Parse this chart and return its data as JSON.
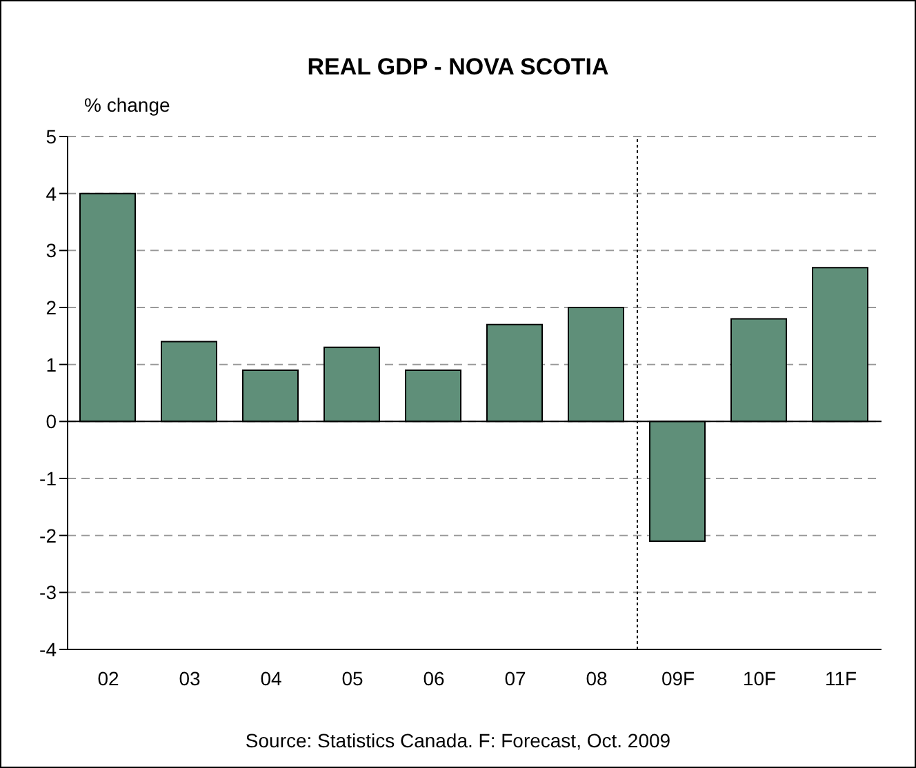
{
  "chart_data": {
    "type": "bar",
    "title": "REAL GDP - NOVA SCOTIA",
    "ylabel": "% change",
    "categories": [
      "02",
      "03",
      "04",
      "05",
      "06",
      "07",
      "08",
      "09F",
      "10F",
      "11F"
    ],
    "values": [
      4.0,
      1.4,
      0.9,
      1.3,
      0.9,
      1.7,
      2.0,
      -2.1,
      1.8,
      2.7
    ],
    "color": "#5f8f79",
    "ylim": [
      -4,
      5
    ],
    "yticks": [
      -4,
      -3,
      -2,
      -1,
      0,
      1,
      2,
      3,
      4,
      5
    ],
    "grid": "y",
    "ref_lines": [
      {
        "axis": "x",
        "value": "09F",
        "line_style": "dotted",
        "color": "#000000"
      }
    ],
    "annotations": [
      "Source: Statistics Canada. F: Forecast, Oct. 2009"
    ]
  }
}
